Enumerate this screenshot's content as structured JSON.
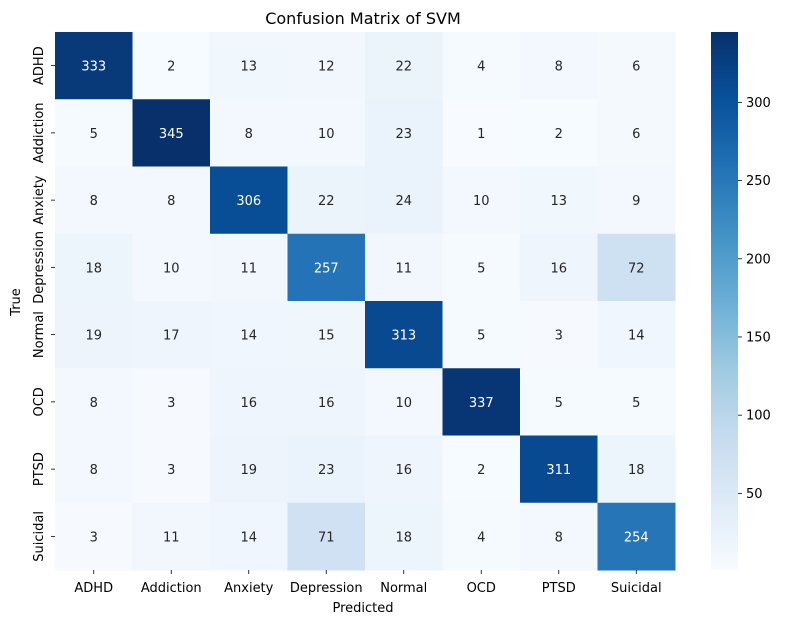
{
  "chart_data": {
    "type": "heatmap",
    "title": "Confusion Matrix of SVM",
    "xlabel": "Predicted",
    "ylabel": "True",
    "x_categories": [
      "ADHD",
      "Addiction",
      "Anxiety",
      "Depression",
      "Normal",
      "OCD",
      "PTSD",
      "Suicidal"
    ],
    "y_categories": [
      "ADHD",
      "Addiction",
      "Anxiety",
      "Depression",
      "Normal",
      "OCD",
      "PTSD",
      "Suicidal"
    ],
    "values": [
      [
        333,
        2,
        13,
        12,
        22,
        4,
        8,
        6
      ],
      [
        5,
        345,
        8,
        10,
        23,
        1,
        2,
        6
      ],
      [
        8,
        8,
        306,
        22,
        24,
        10,
        13,
        9
      ],
      [
        18,
        10,
        11,
        257,
        11,
        5,
        16,
        72
      ],
      [
        19,
        17,
        14,
        15,
        313,
        5,
        3,
        14
      ],
      [
        8,
        3,
        16,
        16,
        10,
        337,
        5,
        5
      ],
      [
        8,
        3,
        19,
        23,
        16,
        2,
        311,
        18
      ],
      [
        3,
        11,
        14,
        71,
        18,
        4,
        8,
        254
      ]
    ],
    "colormap": "Blues",
    "vmin": 1,
    "vmax": 345,
    "colorbar_ticks": [
      50,
      100,
      150,
      200,
      250,
      300
    ]
  }
}
